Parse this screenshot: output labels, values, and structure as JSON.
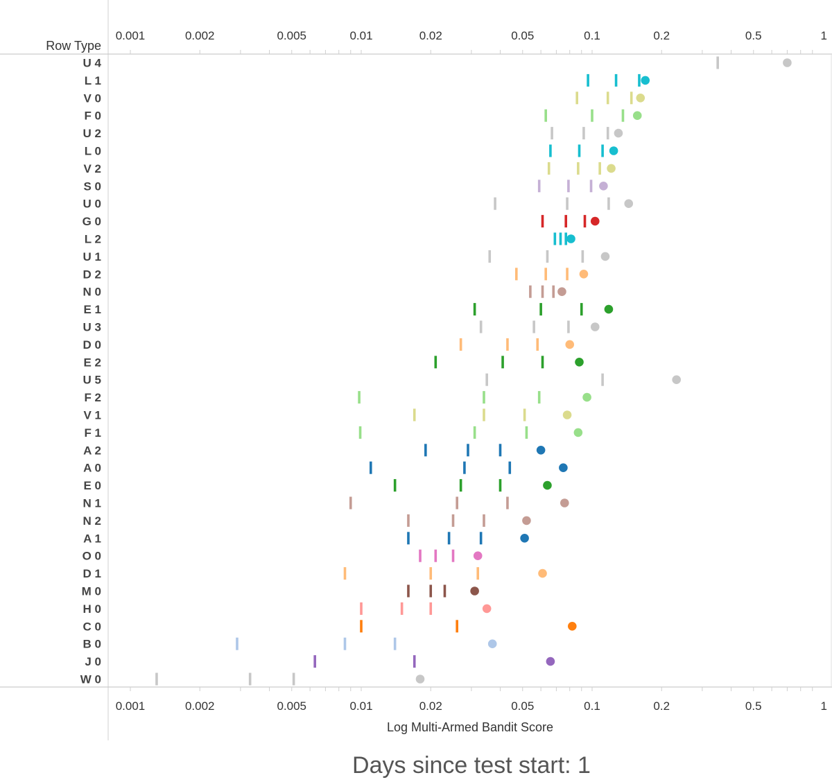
{
  "chart_data": {
    "type": "scatter",
    "x_scale": "log",
    "xlim": [
      0.0008,
      1.05
    ],
    "x_ticks": [
      "0.001",
      "0.002",
      "0.005",
      "0.01",
      "0.02",
      "0.05",
      "0.1",
      "0.2",
      "0.5",
      "1"
    ],
    "xlabel": "Log Multi-Armed Bandit Score",
    "row_header": "Row Type",
    "caption": "Days since test start: 1",
    "marks": "vertical tick marks = earlier scores, filled circle = current score",
    "rows": [
      {
        "label": "U 4",
        "color": "#c7c7c7",
        "ticks": [
          0.35
        ],
        "point": 0.7
      },
      {
        "label": "L 1",
        "color": "#17becf",
        "ticks": [
          0.096,
          0.127,
          0.16
        ],
        "point": 0.17
      },
      {
        "label": "V 0",
        "color": "#dbdb8d",
        "ticks": [
          0.086,
          0.117,
          0.148
        ],
        "point": 0.162
      },
      {
        "label": "F 0",
        "color": "#98df8a",
        "ticks": [
          0.063,
          0.1,
          0.136
        ],
        "point": 0.157
      },
      {
        "label": "U 2",
        "color": "#c7c7c7",
        "ticks": [
          0.067,
          0.092,
          0.117
        ],
        "point": 0.13
      },
      {
        "label": "L 0",
        "color": "#17becf",
        "ticks": [
          0.066,
          0.088,
          0.111
        ],
        "point": 0.124
      },
      {
        "label": "V 2",
        "color": "#dbdb8d",
        "ticks": [
          0.065,
          0.087,
          0.108
        ],
        "point": 0.121
      },
      {
        "label": "S 0",
        "color": "#c5b0d5",
        "ticks": [
          0.059,
          0.079,
          0.099
        ],
        "point": 0.112
      },
      {
        "label": "U 0",
        "color": "#c7c7c7",
        "ticks": [
          0.038,
          0.078,
          0.118
        ],
        "point": 0.144
      },
      {
        "label": "G 0",
        "color": "#d62728",
        "ticks": [
          0.061,
          0.077,
          0.093
        ],
        "point": 0.103
      },
      {
        "label": "L 2",
        "color": "#17becf",
        "ticks": [
          0.069,
          0.073,
          0.077
        ],
        "point": 0.081
      },
      {
        "label": "U 1",
        "color": "#c7c7c7",
        "ticks": [
          0.036,
          0.064,
          0.091
        ],
        "point": 0.114
      },
      {
        "label": "D 2",
        "color": "#ffbb78",
        "ticks": [
          0.047,
          0.063,
          0.078
        ],
        "point": 0.092
      },
      {
        "label": "N 0",
        "color": "#c49c94",
        "ticks": [
          0.054,
          0.061,
          0.068
        ],
        "point": 0.074
      },
      {
        "label": "E 1",
        "color": "#2ca02c",
        "ticks": [
          0.031,
          0.06,
          0.09
        ],
        "point": 0.118
      },
      {
        "label": "U 3",
        "color": "#c7c7c7",
        "ticks": [
          0.033,
          0.056,
          0.079
        ],
        "point": 0.103
      },
      {
        "label": "D 0",
        "color": "#ffbb78",
        "ticks": [
          0.027,
          0.043,
          0.058
        ],
        "point": 0.08
      },
      {
        "label": "E 2",
        "color": "#2ca02c",
        "ticks": [
          0.021,
          0.041,
          0.061
        ],
        "point": 0.088
      },
      {
        "label": "U 5",
        "color": "#c7c7c7",
        "ticks": [
          0.035,
          0.111
        ],
        "point": 0.232
      },
      {
        "label": "F 2",
        "color": "#98df8a",
        "ticks": [
          0.0098,
          0.034,
          0.059
        ],
        "point": 0.095
      },
      {
        "label": "V 1",
        "color": "#dbdb8d",
        "ticks": [
          0.017,
          0.034,
          0.051
        ],
        "point": 0.078
      },
      {
        "label": "F 1",
        "color": "#98df8a",
        "ticks": [
          0.0099,
          0.031,
          0.052
        ],
        "point": 0.087
      },
      {
        "label": "A 2",
        "color": "#1f77b4",
        "ticks": [
          0.019,
          0.029,
          0.04
        ],
        "point": 0.06
      },
      {
        "label": "A 0",
        "color": "#1f77b4",
        "ticks": [
          0.011,
          0.028,
          0.044
        ],
        "point": 0.075
      },
      {
        "label": "E 0",
        "color": "#2ca02c",
        "ticks": [
          0.014,
          0.027,
          0.04
        ],
        "point": 0.064
      },
      {
        "label": "N 1",
        "color": "#c49c94",
        "ticks": [
          0.009,
          0.026,
          0.043
        ],
        "point": 0.076
      },
      {
        "label": "N 2",
        "color": "#c49c94",
        "ticks": [
          0.016,
          0.025,
          0.034
        ],
        "point": 0.052
      },
      {
        "label": "A 1",
        "color": "#1f77b4",
        "ticks": [
          0.016,
          0.024,
          0.033
        ],
        "point": 0.051
      },
      {
        "label": "O 0",
        "color": "#e377c2",
        "ticks": [
          0.018,
          0.021,
          0.025
        ],
        "point": 0.032
      },
      {
        "label": "D 1",
        "color": "#ffbb78",
        "ticks": [
          0.0085,
          0.02,
          0.032
        ],
        "point": 0.061
      },
      {
        "label": "M 0",
        "color": "#8c564b",
        "ticks": [
          0.016,
          0.02,
          0.023
        ],
        "point": 0.031
      },
      {
        "label": "H 0",
        "color": "#ff9896",
        "ticks": [
          0.01,
          0.015,
          0.02
        ],
        "point": 0.035
      },
      {
        "label": "C 0",
        "color": "#ff7f0e",
        "ticks": [
          0.01,
          0.026
        ],
        "point": 0.082
      },
      {
        "label": "B 0",
        "color": "#aec7e8",
        "ticks": [
          0.0029,
          0.0085,
          0.014
        ],
        "point": 0.037
      },
      {
        "label": "J 0",
        "color": "#9467bd",
        "ticks": [
          0.0063,
          0.017
        ],
        "point": 0.066
      },
      {
        "label": "W 0",
        "color": "#c7c7c7",
        "ticks": [
          0.0013,
          0.0033,
          0.0051
        ],
        "point": 0.018
      }
    ]
  }
}
